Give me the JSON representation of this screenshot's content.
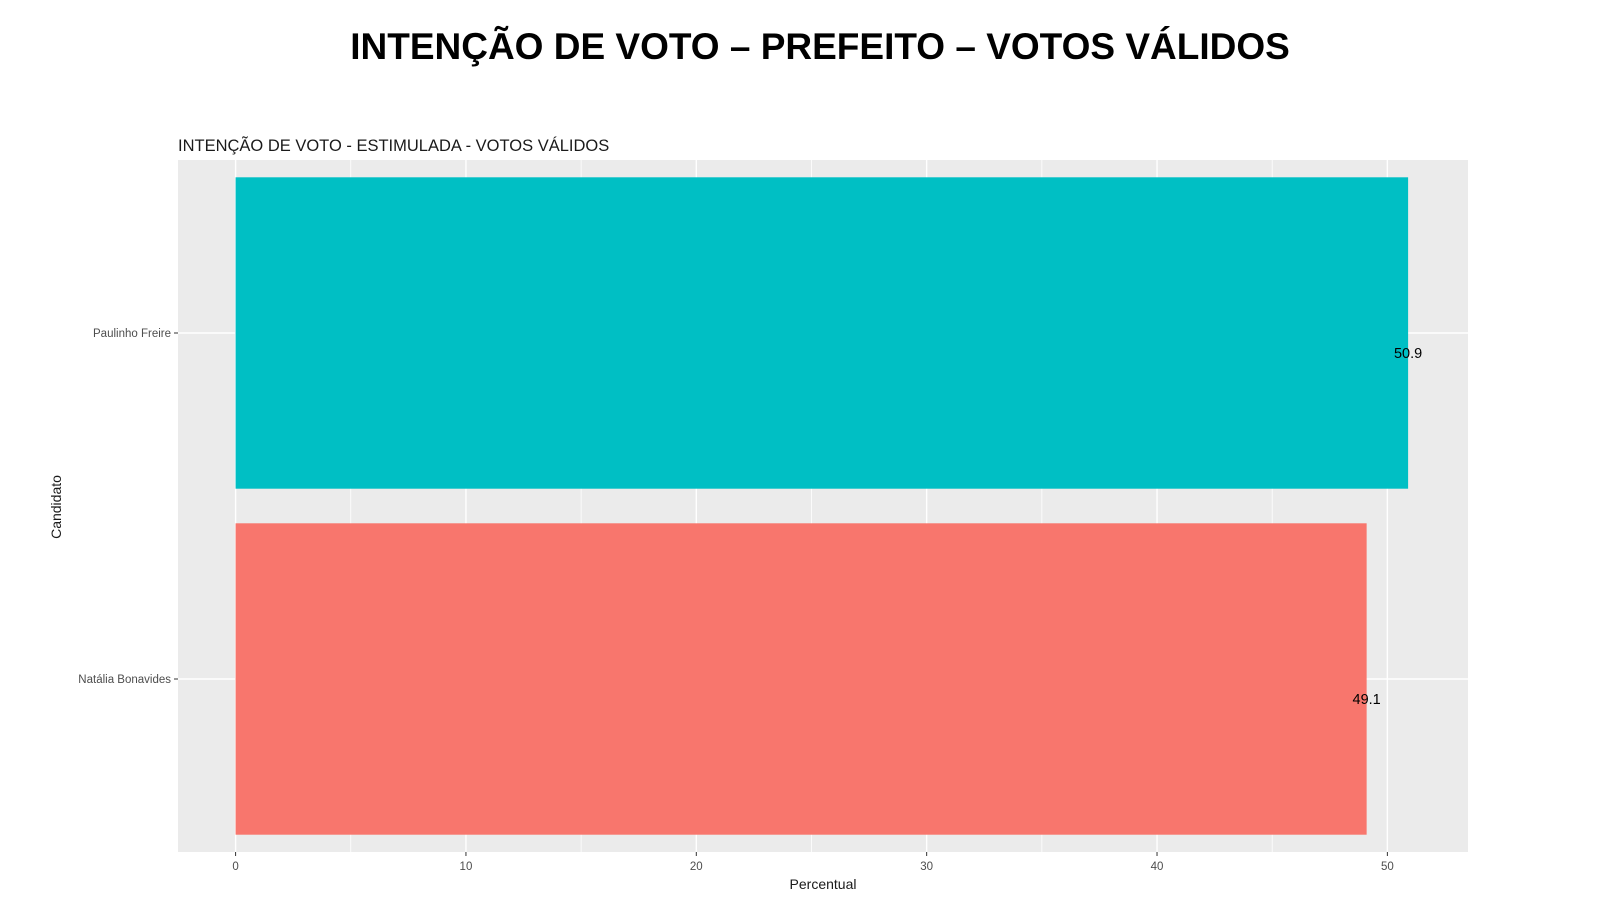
{
  "page": {
    "title": "INTENÇÃO DE VOTO – PREFEITO – VOTOS VÁLIDOS"
  },
  "chart_data": {
    "type": "bar",
    "orientation": "horizontal",
    "title": "INTENÇÃO DE VOTO - ESTIMULADA - VOTOS VÁLIDOS",
    "xlabel": "Percentual",
    "ylabel": "Candidato",
    "categories": [
      "Paulinho Freire",
      "Natália Bonavides"
    ],
    "values": [
      50.9,
      49.1
    ],
    "data_labels": [
      "50.9",
      "49.1"
    ],
    "colors": [
      "#00BFC4",
      "#F8766D"
    ],
    "xlim": [
      -2.5,
      53.5
    ],
    "x_ticks": [
      0,
      10,
      20,
      30,
      40,
      50
    ],
    "x_tick_labels": [
      "0",
      "10",
      "20",
      "30",
      "40",
      "50"
    ],
    "grid": true,
    "legend": "none",
    "panel_background": "#EBEBEB",
    "grid_color": "#FFFFFF"
  }
}
